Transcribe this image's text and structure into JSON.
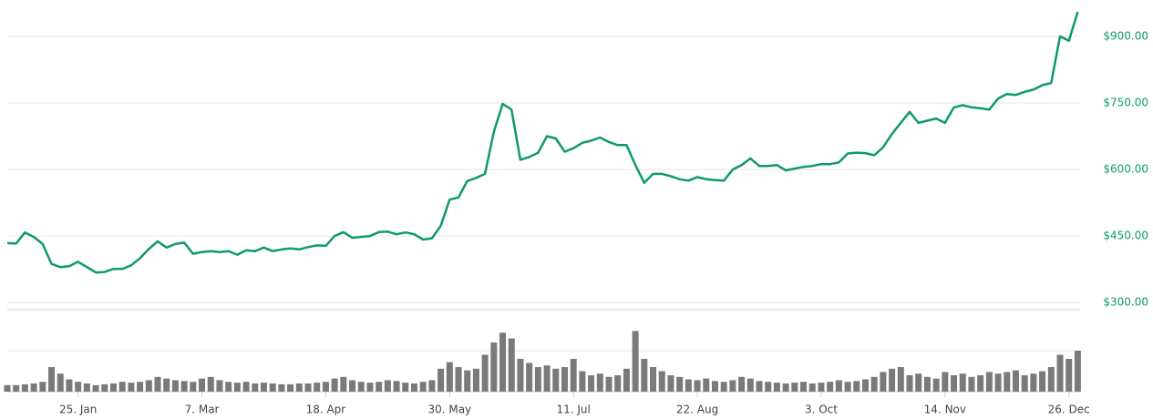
{
  "chart_data": {
    "type": "line",
    "x": [
      "1. Jan",
      "4. Jan",
      "7. Jan",
      "10. Jan",
      "13. Jan",
      "16. Jan",
      "19. Jan",
      "22. Jan",
      "25. Jan",
      "28. Jan",
      "31. Jan",
      "3. Feb",
      "6. Feb",
      "9. Feb",
      "12. Feb",
      "15. Feb",
      "18. Feb",
      "21. Feb",
      "24. Feb",
      "27. Feb",
      "1. Mar",
      "4. Mar",
      "7. Mar",
      "10. Mar",
      "13. Mar",
      "16. Mar",
      "19. Mar",
      "22. Mar",
      "25. Mar",
      "28. Mar",
      "31. Mar",
      "3. Apr",
      "6. Apr",
      "9. Apr",
      "12. Apr",
      "15. Apr",
      "18. Apr",
      "21. Apr",
      "24. Apr",
      "27. Apr",
      "30. Apr",
      "3. May",
      "6. May",
      "9. May",
      "12. May",
      "15. May",
      "18. May",
      "21. May",
      "24. May",
      "27. May",
      "30. May",
      "2. Jun",
      "5. Jun",
      "8. Jun",
      "11. Jun",
      "14. Jun",
      "17. Jun",
      "20. Jun",
      "23. Jun",
      "26. Jun",
      "29. Jun",
      "2. Jul",
      "5. Jul",
      "8. Jul",
      "11. Jul",
      "14. Jul",
      "17. Jul",
      "20. Jul",
      "23. Jul",
      "26. Jul",
      "29. Jul",
      "1. Aug",
      "4. Aug",
      "7. Aug",
      "10. Aug",
      "13. Aug",
      "16. Aug",
      "19. Aug",
      "22. Aug",
      "25. Aug",
      "28. Aug",
      "31. Aug",
      "3. Sep",
      "6. Sep",
      "9. Sep",
      "12. Sep",
      "15. Sep",
      "18. Sep",
      "21. Sep",
      "24. Sep",
      "27. Sep",
      "30. Sep",
      "3. Oct",
      "6. Oct",
      "9. Oct",
      "12. Oct",
      "15. Oct",
      "18. Oct",
      "21. Oct",
      "24. Oct",
      "27. Oct",
      "30. Oct",
      "2. Nov",
      "5. Nov",
      "8. Nov",
      "11. Nov",
      "14. Nov",
      "17. Nov",
      "20. Nov",
      "23. Nov",
      "26. Nov",
      "29. Nov",
      "2. Dec",
      "5. Dec",
      "8. Dec",
      "11. Dec",
      "14. Dec",
      "17. Dec",
      "20. Dec",
      "23. Dec",
      "26. Dec",
      "29. Dec"
    ],
    "series": [
      {
        "color": "#0e9a6c",
        "values": [
          434,
          433,
          458,
          448,
          432,
          387,
          380,
          382,
          392,
          380,
          368,
          369,
          376,
          376,
          384,
          400,
          421,
          438,
          424,
          432,
          435,
          410,
          414,
          416,
          414,
          416,
          408,
          418,
          416,
          424,
          416,
          420,
          422,
          420,
          425,
          429,
          428,
          450,
          459,
          446,
          448,
          450,
          459,
          460,
          454,
          458,
          454,
          442,
          445,
          473,
          532,
          537,
          574,
          581,
          590,
          685,
          748,
          735,
          622,
          628,
          638,
          675,
          670,
          640,
          648,
          660,
          665,
          672,
          662,
          655,
          655,
          610,
          570,
          590,
          590,
          585,
          578,
          575,
          583,
          578,
          576,
          575,
          600,
          610,
          625,
          608,
          608,
          610,
          598,
          602,
          606,
          608,
          612,
          612,
          616,
          636,
          638,
          637,
          632,
          650,
          680,
          705,
          730,
          705,
          710,
          715,
          705,
          740,
          745,
          740,
          738,
          735,
          760,
          770,
          768,
          775,
          780,
          790,
          795,
          900,
          890,
          955
        ]
      },
      {
        "type": "bar",
        "axis": "y2",
        "color": "#7a7a7a",
        "values": [
          8,
          8,
          9,
          10,
          12,
          30,
          22,
          15,
          12,
          10,
          8,
          9,
          10,
          12,
          11,
          12,
          14,
          18,
          16,
          14,
          13,
          12,
          16,
          18,
          14,
          12,
          11,
          12,
          10,
          11,
          10,
          9,
          9,
          10,
          10,
          11,
          12,
          16,
          18,
          14,
          12,
          11,
          12,
          14,
          13,
          11,
          10,
          12,
          14,
          28,
          36,
          30,
          26,
          28,
          45,
          60,
          72,
          65,
          40,
          35,
          30,
          32,
          28,
          30,
          40,
          25,
          20,
          22,
          18,
          20,
          28,
          74,
          40,
          30,
          25,
          20,
          18,
          15,
          14,
          16,
          13,
          12,
          14,
          18,
          16,
          13,
          12,
          11,
          10,
          11,
          12,
          10,
          11,
          12,
          14,
          12,
          13,
          15,
          18,
          24,
          28,
          30,
          20,
          22,
          18,
          16,
          24,
          20,
          22,
          18,
          20,
          24,
          22,
          24,
          26,
          20,
          22,
          25,
          30,
          45,
          40,
          50
        ]
      }
    ],
    "ylim": [
      284,
      982
    ],
    "yticks": [
      {
        "value": 300,
        "label": "$300.00"
      },
      {
        "value": 450,
        "label": "$450.00"
      },
      {
        "value": 600,
        "label": "$600.00"
      },
      {
        "value": 750,
        "label": "$750.00"
      },
      {
        "value": 900,
        "label": "$900.00"
      }
    ],
    "y2lim": [
      0,
      100
    ],
    "xticks": [
      "25. Jan",
      "7. Mar",
      "18. Apr",
      "30. May",
      "11. Jul",
      "22. Aug",
      "3. Oct",
      "14. Nov",
      "26. Dec"
    ],
    "grid": true
  }
}
